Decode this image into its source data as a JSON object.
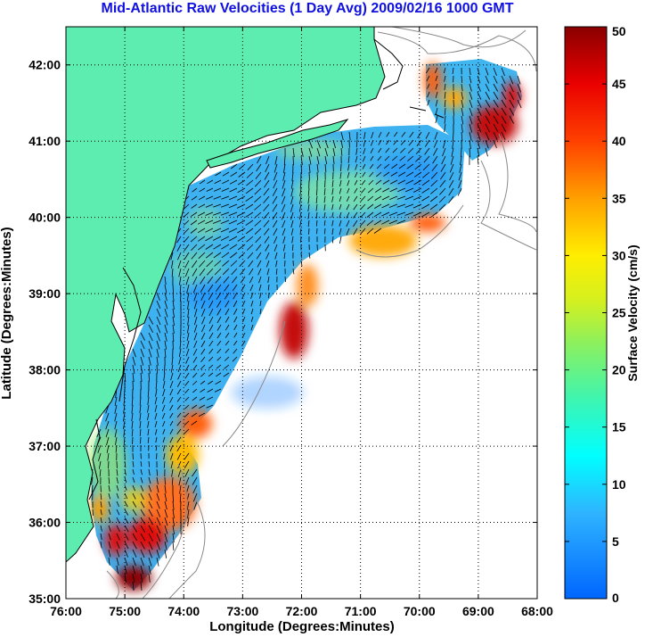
{
  "title": "Mid-Atlantic Raw Velocities (1 Day Avg) 2009/02/16 1000 GMT",
  "xlabel": "Longitude (Degrees:Minutes)",
  "ylabel": "Latitude (Degrees:Minutes)",
  "colorbar": {
    "label": "Surface Velocity (cm/s)",
    "min": 0,
    "max": 50,
    "ticks": [
      "0",
      "5",
      "10",
      "15",
      "20",
      "25",
      "30",
      "35",
      "40",
      "45",
      "50"
    ]
  },
  "axes": {
    "x_ticks": [
      "76:00",
      "75:00",
      "74:00",
      "73:00",
      "72:00",
      "71:00",
      "70:00",
      "69:00",
      "68:00"
    ],
    "y_ticks": [
      "35:00",
      "36:00",
      "37:00",
      "38:00",
      "39:00",
      "40:00",
      "41:00",
      "42:00"
    ],
    "lon_range": [
      -76,
      -68
    ],
    "lat_range": [
      35,
      42.5
    ],
    "grid": "dotted"
  },
  "colors": {
    "land": "#5eedb0",
    "title": "#1010e0",
    "vector": "#000000",
    "bathymetry": "#8a8a8a"
  }
}
